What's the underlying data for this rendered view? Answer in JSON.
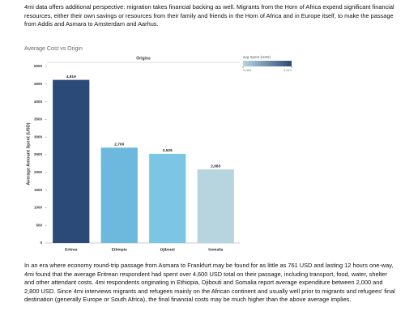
{
  "paragraphs": [
    "4mi data offers additional perspective: migration takes financial backing as well. Migrants from the Horn of Africa expend significant financial resources, either their own savings or resources from their family and friends in the Horn of Africa and in Europe itself, to make the passage from Addis and Asmara to Amsterdam and Aarhus.",
    "In an era where economy round-trip passage from Asmara to Frankfurt may be found for as little as 761 USD and lasting 12 hours one-way, 4mi found that the average Eritrean respondent had spent over 4,600 USD total on their passage, including transport, food, water, shelter and other attendant costs. 4mi respondents originating in Ethiopia, Djibouti and Somalia report average expenditure between 2,000 and 2,800 USD.  Since 4mi interviews migrants and refugees mainly on the African continent and usually well prior to migrants and refugees' final destination (generally Europe or South Africa), the final financial costs may be much higher than the above average implies."
  ],
  "chart_data": {
    "type": "bar",
    "title": "Average Cost vs Origin",
    "column_header": "Origins",
    "y_label": "Average Amount Spent (USD)",
    "categories": [
      "Eritrea",
      "Ethiopia",
      "Djibouti",
      "Somalia"
    ],
    "values": [
      4619,
      2700,
      2526,
      2083
    ],
    "value_labels": [
      "4,619",
      "2,700",
      "2,526",
      "2,083"
    ],
    "colors": [
      "#2b4a78",
      "#6db9de",
      "#7cc5e4",
      "#b7d5de"
    ],
    "ylim": [
      0,
      5000
    ],
    "yticks": [
      0,
      500,
      1000,
      1500,
      2000,
      2500,
      3000,
      3500,
      4000,
      4500,
      5000
    ],
    "legend_title": "avg Spent (USD)",
    "legend_ticks": [
      {
        "value": 2083,
        "label": "2,083"
      },
      {
        "value": 4619,
        "label": "4,619"
      }
    ],
    "legend_colors": [
      "#b7d5de",
      "#2b4a78"
    ]
  }
}
